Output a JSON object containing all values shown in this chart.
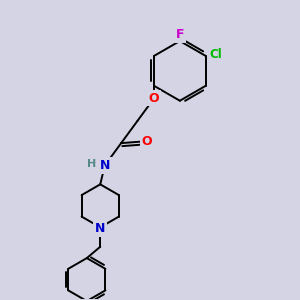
{
  "bg_color": "#d4d4e4",
  "bond_color": "#000000",
  "atom_colors": {
    "O": "#ff0000",
    "N": "#0000cc",
    "Cl": "#00bb00",
    "F": "#cc00cc",
    "H": "#558888"
  },
  "font_size": 8.5,
  "line_width": 1.4,
  "figsize": [
    3.0,
    3.0
  ],
  "dpi": 100
}
